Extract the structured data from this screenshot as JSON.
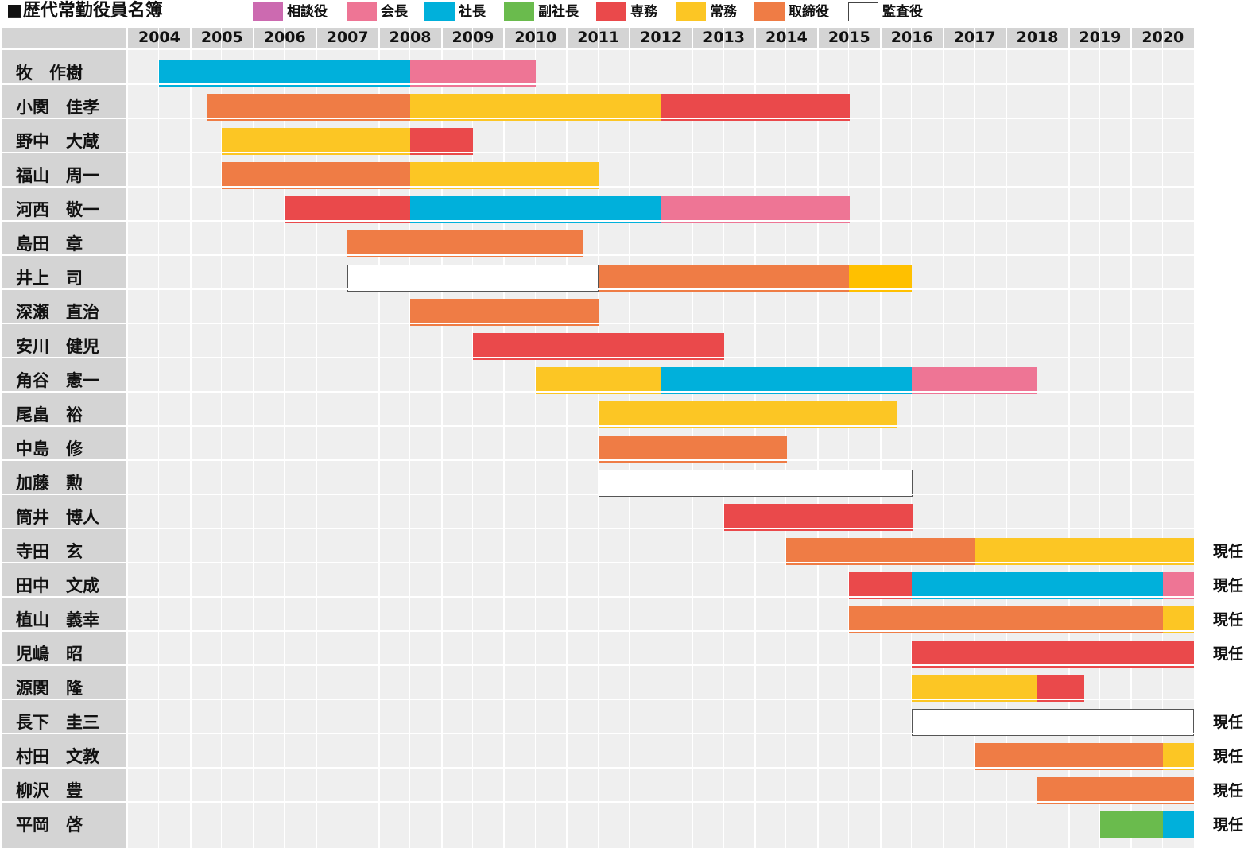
{
  "chart_data": {
    "type": "gantt",
    "title": "■歴代常勤役員名簿",
    "years": [
      "2004",
      "2005",
      "2006",
      "2007",
      "2008",
      "2009",
      "2010",
      "2011",
      "2012",
      "2013",
      "2014",
      "2015",
      "2016",
      "2017",
      "2018",
      "2019",
      "2020"
    ],
    "x_range": [
      2003.5,
      2020.5
    ],
    "roles": [
      {
        "key": "sodan",
        "label": "相談役",
        "color": "#cc6ab0"
      },
      {
        "key": "kaicho",
        "label": "会長",
        "color": "#ee7595"
      },
      {
        "key": "shacho",
        "label": "社長",
        "color": "#00b0db"
      },
      {
        "key": "fukushacho",
        "label": "副社長",
        "color": "#6abb4d"
      },
      {
        "key": "senmu",
        "label": "専務",
        "color": "#ea494b"
      },
      {
        "key": "jomu",
        "label": "常務",
        "color": "#fcc624"
      },
      {
        "key": "torishimari",
        "label": "取締役",
        "color": "#ef7c45"
      },
      {
        "key": "kansa",
        "label": "監査役",
        "color": "#ffffff"
      }
    ],
    "people": [
      {
        "name": "牧　作樹",
        "current": "",
        "segments": [
          {
            "role": "shacho",
            "start": 2004.0,
            "end": 2008.0
          },
          {
            "role": "kaicho",
            "start": 2008.0,
            "end": 2010.0
          }
        ]
      },
      {
        "name": "小関　佳孝",
        "current": "",
        "segments": [
          {
            "role": "torishimari",
            "start": 2004.75,
            "end": 2008.0
          },
          {
            "role": "jomu",
            "start": 2008.0,
            "end": 2012.0
          },
          {
            "role": "senmu",
            "start": 2012.0,
            "end": 2015.0
          }
        ]
      },
      {
        "name": "野中　大蔵",
        "current": "",
        "segments": [
          {
            "role": "jomu",
            "start": 2005.0,
            "end": 2008.0
          },
          {
            "role": "senmu",
            "start": 2008.0,
            "end": 2009.0
          }
        ]
      },
      {
        "name": "福山　周一",
        "current": "",
        "segments": [
          {
            "role": "torishimari",
            "start": 2005.0,
            "end": 2008.0
          },
          {
            "role": "jomu",
            "start": 2008.0,
            "end": 2011.0
          }
        ]
      },
      {
        "name": "河西　敬一",
        "current": "",
        "segments": [
          {
            "role": "senmu",
            "start": 2006.0,
            "end": 2008.0
          },
          {
            "role": "shacho",
            "start": 2008.0,
            "end": 2012.0
          },
          {
            "role": "kaicho",
            "start": 2012.0,
            "end": 2015.0
          }
        ]
      },
      {
        "name": "島田　章",
        "current": "",
        "segments": [
          {
            "role": "torishimari",
            "start": 2007.0,
            "end": 2010.75
          }
        ]
      },
      {
        "name": "井上　司",
        "current": "",
        "segments": [
          {
            "role": "kansa",
            "start": 2007.0,
            "end": 2011.0
          },
          {
            "role": "torishimari",
            "start": 2011.0,
            "end": 2015.0
          },
          {
            "role": "jomu",
            "start": 2015.0,
            "end": 2016.0,
            "color": "#ffc000"
          }
        ]
      },
      {
        "name": "深瀬　直治",
        "current": "",
        "segments": [
          {
            "role": "torishimari",
            "start": 2008.0,
            "end": 2011.0
          }
        ]
      },
      {
        "name": "安川　健児",
        "current": "",
        "segments": [
          {
            "role": "senmu",
            "start": 2009.0,
            "end": 2013.0
          }
        ]
      },
      {
        "name": "角谷　憲一",
        "current": "",
        "segments": [
          {
            "role": "jomu",
            "start": 2010.0,
            "end": 2012.0
          },
          {
            "role": "shacho",
            "start": 2012.0,
            "end": 2016.0
          },
          {
            "role": "kaicho",
            "start": 2016.0,
            "end": 2018.0
          }
        ]
      },
      {
        "name": "尾畠　裕",
        "current": "",
        "segments": [
          {
            "role": "jomu",
            "start": 2011.0,
            "end": 2015.75
          }
        ]
      },
      {
        "name": "中島　修",
        "current": "",
        "segments": [
          {
            "role": "torishimari",
            "start": 2011.0,
            "end": 2014.0
          }
        ]
      },
      {
        "name": "加藤　勲",
        "current": "",
        "segments": [
          {
            "role": "kansa",
            "start": 2011.0,
            "end": 2016.0
          }
        ]
      },
      {
        "name": "筒井　博人",
        "current": "",
        "segments": [
          {
            "role": "senmu",
            "start": 2013.0,
            "end": 2016.0
          }
        ]
      },
      {
        "name": "寺田　玄",
        "current": "現任",
        "segments": [
          {
            "role": "torishimari",
            "start": 2014.0,
            "end": 2017.0
          },
          {
            "role": "jomu",
            "start": 2017.0,
            "end": 2020.5
          }
        ]
      },
      {
        "name": "田中　文成",
        "current": "現任",
        "segments": [
          {
            "role": "senmu",
            "start": 2015.0,
            "end": 2016.0
          },
          {
            "role": "shacho",
            "start": 2016.0,
            "end": 2020.0
          },
          {
            "role": "kaicho",
            "start": 2020.0,
            "end": 2020.5
          }
        ]
      },
      {
        "name": "植山　義幸",
        "current": "現任",
        "segments": [
          {
            "role": "torishimari",
            "start": 2015.0,
            "end": 2020.0
          },
          {
            "role": "jomu",
            "start": 2020.0,
            "end": 2020.5
          }
        ]
      },
      {
        "name": "児嶋　昭",
        "current": "現任",
        "segments": [
          {
            "role": "senmu",
            "start": 2016.0,
            "end": 2020.5
          }
        ]
      },
      {
        "name": "源関　隆",
        "current": "",
        "segments": [
          {
            "role": "jomu",
            "start": 2016.0,
            "end": 2018.0
          },
          {
            "role": "senmu",
            "start": 2018.0,
            "end": 2018.75
          }
        ]
      },
      {
        "name": "長下　圭三",
        "current": "現任",
        "segments": [
          {
            "role": "kansa",
            "start": 2016.0,
            "end": 2020.5
          }
        ]
      },
      {
        "name": "村田　文教",
        "current": "現任",
        "segments": [
          {
            "role": "torishimari",
            "start": 2017.0,
            "end": 2020.0
          },
          {
            "role": "jomu",
            "start": 2020.0,
            "end": 2020.5
          }
        ]
      },
      {
        "name": "柳沢　豊",
        "current": "現任",
        "segments": [
          {
            "role": "torishimari",
            "start": 2018.0,
            "end": 2020.5
          }
        ]
      },
      {
        "name": "平岡　啓",
        "current": "現任",
        "segments": [
          {
            "role": "fukushacho",
            "start": 2019.0,
            "end": 2020.0
          },
          {
            "role": "shacho",
            "start": 2020.0,
            "end": 2020.5
          }
        ]
      }
    ]
  }
}
